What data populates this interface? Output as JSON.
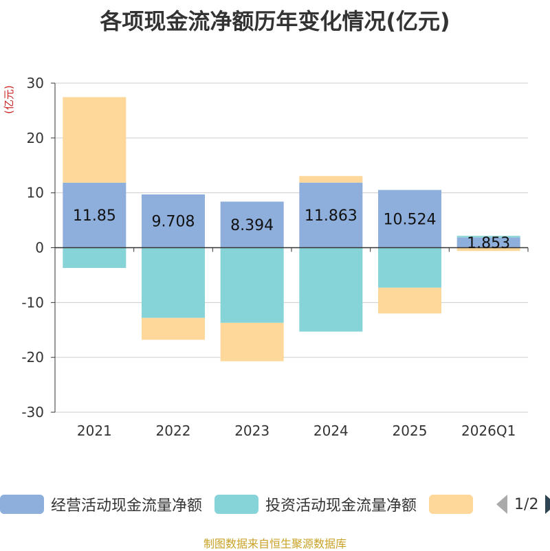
{
  "chart_data": {
    "type": "bar",
    "stacked": true,
    "title": "各项现金流净额历年变化情况(亿元)",
    "ylabel": "(亿元)",
    "ylim": [
      -30,
      30
    ],
    "yticks": [
      30,
      20,
      10,
      0,
      -10,
      -20,
      -30
    ],
    "categories": [
      "2021",
      "2022",
      "2023",
      "2024",
      "2025",
      "2026Q1"
    ],
    "series": [
      {
        "name": "经营活动现金流量净额",
        "color": "#8eaedb",
        "values": [
          11.85,
          9.708,
          8.394,
          11.863,
          10.524,
          1.853
        ],
        "labels": [
          "11.85",
          "9.708",
          "8.394",
          "11.863",
          "10.524",
          "1.853"
        ]
      },
      {
        "name": "投资活动现金流量净额",
        "color": "#86d4d8",
        "values": [
          -3.7,
          -12.8,
          -13.7,
          -15.3,
          -7.3,
          0.3
        ]
      },
      {
        "name": "",
        "color": "#fdd89a",
        "values": [
          15.6,
          -4.0,
          -7.0,
          1.2,
          -4.7,
          -0.6
        ]
      }
    ]
  },
  "legend": {
    "items": [
      {
        "label": "经营活动现金流量净额",
        "color": "#8eaedb"
      },
      {
        "label": "投资活动现金流量净额",
        "color": "#86d4d8"
      },
      {
        "label": "",
        "color": "#fdd89a"
      }
    ],
    "page": "1/2"
  },
  "source": "制图数据来自恒生聚源数据库"
}
